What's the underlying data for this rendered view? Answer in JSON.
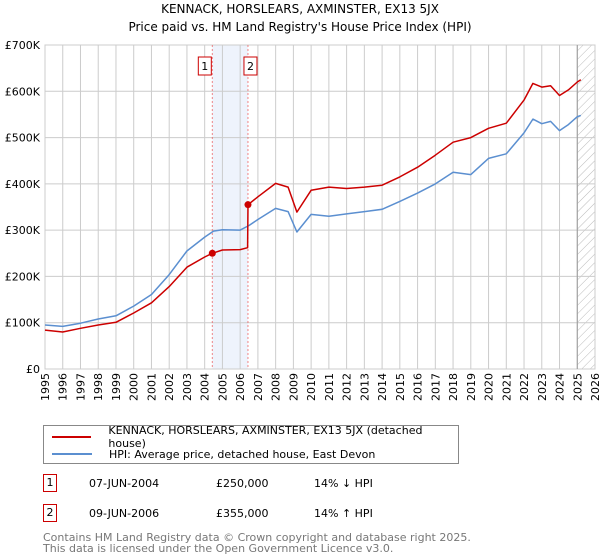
{
  "title_line1": "KENNACK, HORSLEARS, AXMINSTER, EX13 5JX",
  "title_line2": "Price paid vs. HM Land Registry's House Price Index (HPI)",
  "colors": {
    "property": "#cc0000",
    "hpi": "#5b8fd0",
    "grid": "#cccccc",
    "shade": "#eef3fc"
  },
  "chart_data": {
    "type": "line",
    "title": "Price paid vs. HM Land Registry's House Price Index (HPI)",
    "xlim": [
      1995,
      2026
    ],
    "ylim": [
      0,
      700000
    ],
    "x_ticks": [
      "1995",
      "1996",
      "1997",
      "1998",
      "1999",
      "2000",
      "2001",
      "2002",
      "2003",
      "2004",
      "2005",
      "2006",
      "2007",
      "2008",
      "2009",
      "2010",
      "2011",
      "2012",
      "2013",
      "2014",
      "2015",
      "2016",
      "2017",
      "2018",
      "2019",
      "2020",
      "2021",
      "2022",
      "2023",
      "2024",
      "2025",
      "2026"
    ],
    "y_ticks": [
      {
        "v": 0,
        "label": "£0"
      },
      {
        "v": 100000,
        "label": "£100K"
      },
      {
        "v": 200000,
        "label": "£200K"
      },
      {
        "v": 300000,
        "label": "£300K"
      },
      {
        "v": 400000,
        "label": "£400K"
      },
      {
        "v": 500000,
        "label": "£500K"
      },
      {
        "v": 600000,
        "label": "£600K"
      },
      {
        "v": 700000,
        "label": "£700K"
      }
    ],
    "grid": true,
    "forecast_from": 2025.0,
    "shaded_range": [
      2004.43,
      2006.44
    ],
    "series": [
      {
        "name": "KENNACK, HORSLEARS, AXMINSTER, EX13 5JX (detached house)",
        "x": [
          1995,
          1996,
          1997,
          1998,
          1999,
          2000,
          2001,
          2002,
          2003,
          2004,
          2004.43,
          2005,
          2006,
          2006.42,
          2006.44,
          2007,
          2008,
          2008.7,
          2009.2,
          2010,
          2011,
          2012,
          2013,
          2014,
          2015,
          2016,
          2017,
          2018,
          2019,
          2020,
          2021,
          2022,
          2022.5,
          2023,
          2023.5,
          2024,
          2024.5,
          2025,
          2025.2
        ],
        "y": [
          84000,
          80000,
          88000,
          95000,
          101000,
          121000,
          143000,
          178000,
          220000,
          242000,
          250000,
          257000,
          258000,
          262000,
          355000,
          372000,
          401000,
          393000,
          339000,
          386000,
          393000,
          390000,
          393000,
          397000,
          415000,
          436000,
          462000,
          490000,
          500000,
          520000,
          531000,
          581000,
          617000,
          609000,
          612000,
          591000,
          603000,
          620000,
          625000
        ]
      },
      {
        "name": "HPI: Average price, detached house, East Devon",
        "x": [
          1995,
          1996,
          1997,
          1998,
          1999,
          2000,
          2001,
          2002,
          2003,
          2004,
          2004.5,
          2005,
          2006,
          2006.5,
          2007,
          2008,
          2008.7,
          2009.2,
          2010,
          2011,
          2012,
          2013,
          2014,
          2015,
          2016,
          2017,
          2018,
          2019,
          2020,
          2021,
          2022,
          2022.5,
          2023,
          2023.5,
          2024,
          2024.5,
          2025,
          2025.2
        ],
        "y": [
          95000,
          92000,
          99000,
          108000,
          115000,
          136000,
          161000,
          204000,
          255000,
          285000,
          298000,
          301000,
          300000,
          310000,
          323000,
          347000,
          340000,
          296000,
          334000,
          330000,
          335000,
          340000,
          345000,
          362000,
          380000,
          400000,
          425000,
          420000,
          455000,
          465000,
          510000,
          540000,
          530000,
          535000,
          515000,
          528000,
          545000,
          548000
        ]
      }
    ],
    "annotations": [
      {
        "label": "1",
        "x": 2004.43,
        "y": 250000
      },
      {
        "label": "2",
        "x": 2006.44,
        "y": 355000
      }
    ]
  },
  "legend": {
    "property": "KENNACK, HORSLEARS, AXMINSTER, EX13 5JX (detached house)",
    "hpi": "HPI: Average price, detached house, East Devon"
  },
  "transactions": [
    {
      "num": "1",
      "date": "07-JUN-2004",
      "price": "£250,000",
      "hpi": "14% ↓ HPI"
    },
    {
      "num": "2",
      "date": "09-JUN-2006",
      "price": "£355,000",
      "hpi": "14% ↑ HPI"
    }
  ],
  "footer_line1": "Contains HM Land Registry data © Crown copyright and database right 2025.",
  "footer_line2": "This data is licensed under the Open Government Licence v3.0."
}
